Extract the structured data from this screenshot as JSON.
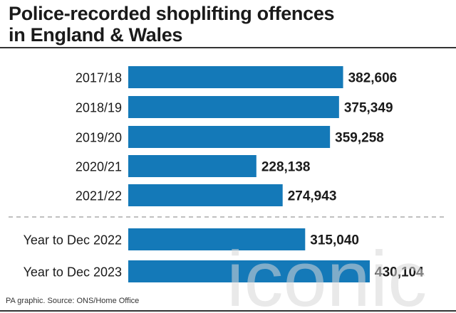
{
  "title_line1": "Police-recorded shoplifting offences",
  "title_line2": "in England & Wales",
  "source": "PA graphic. Source: ONS/Home Office",
  "watermark": "iconic",
  "colors": {
    "bar": "#1479b8",
    "text": "#1a1a1a",
    "divider": "#9a9a9a"
  },
  "chart_data": {
    "type": "bar",
    "orientation": "horizontal",
    "title": "Police-recorded shoplifting offences in England & Wales",
    "categories": [
      "2017/18",
      "2018/19",
      "2019/20",
      "2020/21",
      "2021/22",
      "Year to Dec 2022",
      "Year to Dec 2023"
    ],
    "values": [
      382606,
      375349,
      359258,
      228138,
      274943,
      315040,
      430104
    ],
    "value_labels": [
      "382,606",
      "375,349",
      "359,258",
      "228,138",
      "274,943",
      "315,040",
      "430,104"
    ],
    "groups": [
      [
        0,
        1,
        2,
        3,
        4
      ],
      [
        5,
        6
      ]
    ],
    "xlim": [
      0,
      430104
    ],
    "grid": false,
    "legend": "none"
  }
}
